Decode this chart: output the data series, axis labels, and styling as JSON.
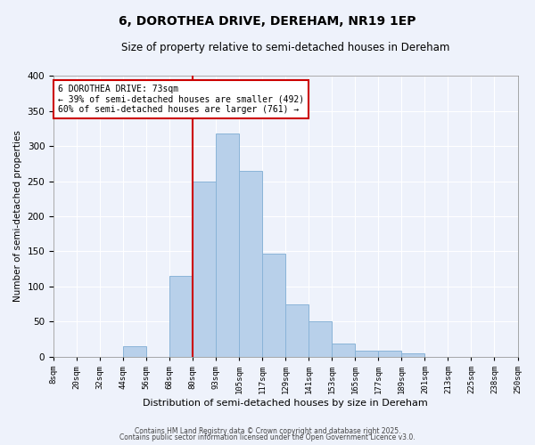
{
  "title": "6, DOROTHEA DRIVE, DEREHAM, NR19 1EP",
  "subtitle": "Size of property relative to semi-detached houses in Dereham",
  "xlabel": "Distribution of semi-detached houses by size in Dereham",
  "ylabel": "Number of semi-detached properties",
  "bar_values": [
    0,
    0,
    0,
    15,
    0,
    115,
    250,
    318,
    265,
    147,
    75,
    50,
    18,
    8,
    8,
    5,
    0,
    0,
    0,
    0
  ],
  "bin_labels": [
    "8sqm",
    "20sqm",
    "32sqm",
    "44sqm",
    "56sqm",
    "68sqm",
    "80sqm",
    "93sqm",
    "105sqm",
    "117sqm",
    "129sqm",
    "141sqm",
    "153sqm",
    "165sqm",
    "177sqm",
    "189sqm",
    "201sqm",
    "213sqm",
    "225sqm",
    "238sqm",
    "250sqm"
  ],
  "bar_color": "#b8d0ea",
  "bar_edge_color": "#8ab4d8",
  "vline_color": "#cc0000",
  "vline_pos": 6,
  "annotation_box_text": "6 DOROTHEA DRIVE: 73sqm\n← 39% of semi-detached houses are smaller (492)\n60% of semi-detached houses are larger (761) →",
  "annotation_box_color": "#ffffff",
  "annotation_box_edge_color": "#cc0000",
  "ylim": [
    0,
    400
  ],
  "background_color": "#eef2fb",
  "grid_color": "#ffffff",
  "footer_line1": "Contains HM Land Registry data © Crown copyright and database right 2025.",
  "footer_line2": "Contains public sector information licensed under the Open Government Licence v3.0."
}
